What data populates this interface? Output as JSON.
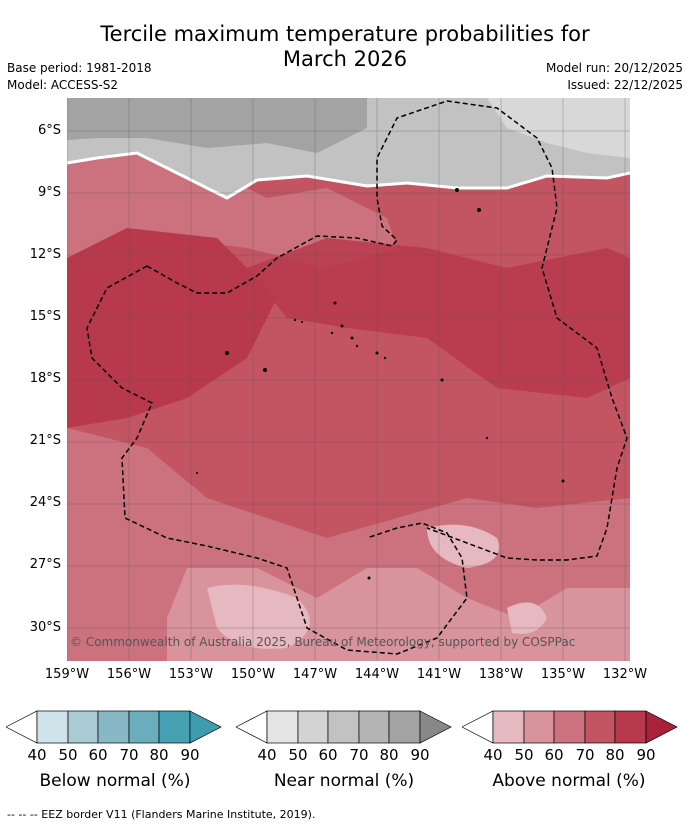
{
  "title_line1": "Tercile maximum temperature probabilities for",
  "title_line2": "March 2026",
  "base_period": "Base period: 1981-2018",
  "model": "Model: ACCESS-S2",
  "model_run": "Model run: 20/12/2025",
  "issued": "Issued: 22/12/2025",
  "lat_labels": [
    "6°S",
    "9°S",
    "12°S",
    "15°S",
    "18°S",
    "21°S",
    "24°S",
    "27°S",
    "30°S"
  ],
  "lon_labels": [
    "159°W",
    "156°W",
    "153°W",
    "150°W",
    "147°W",
    "144°W",
    "141°W",
    "138°W",
    "135°W",
    "132°W"
  ],
  "copyright": "© Commonwealth of Australia 2025, Bureau of Meteorology, supported by COSPPac",
  "colorbars": [
    {
      "title": "Below normal (%)",
      "colors": [
        "#cfe3ea",
        "#a9cbd4",
        "#88b8c5",
        "#6aaebd",
        "#46a2b3"
      ],
      "ticks": [
        "40",
        "50",
        "60",
        "70",
        "80",
        "90"
      ]
    },
    {
      "title": "Near normal (%)",
      "colors": [
        "#e4e4e4",
        "#d3d3d3",
        "#c2c2c2",
        "#b4b4b4",
        "#a3a3a3"
      ],
      "ticks": [
        "40",
        "50",
        "60",
        "70",
        "80",
        "90"
      ]
    },
    {
      "title": "Above normal (%)",
      "colors": [
        "#e6b8bf",
        "#d8939c",
        "#cc727e",
        "#c35563",
        "#b7394b"
      ],
      "ticks": [
        "40",
        "50",
        "60",
        "70",
        "80",
        "90"
      ]
    }
  ],
  "footer": "--  --  -- EEZ border V11 (Flanders Marine Institute, 2019)."
}
